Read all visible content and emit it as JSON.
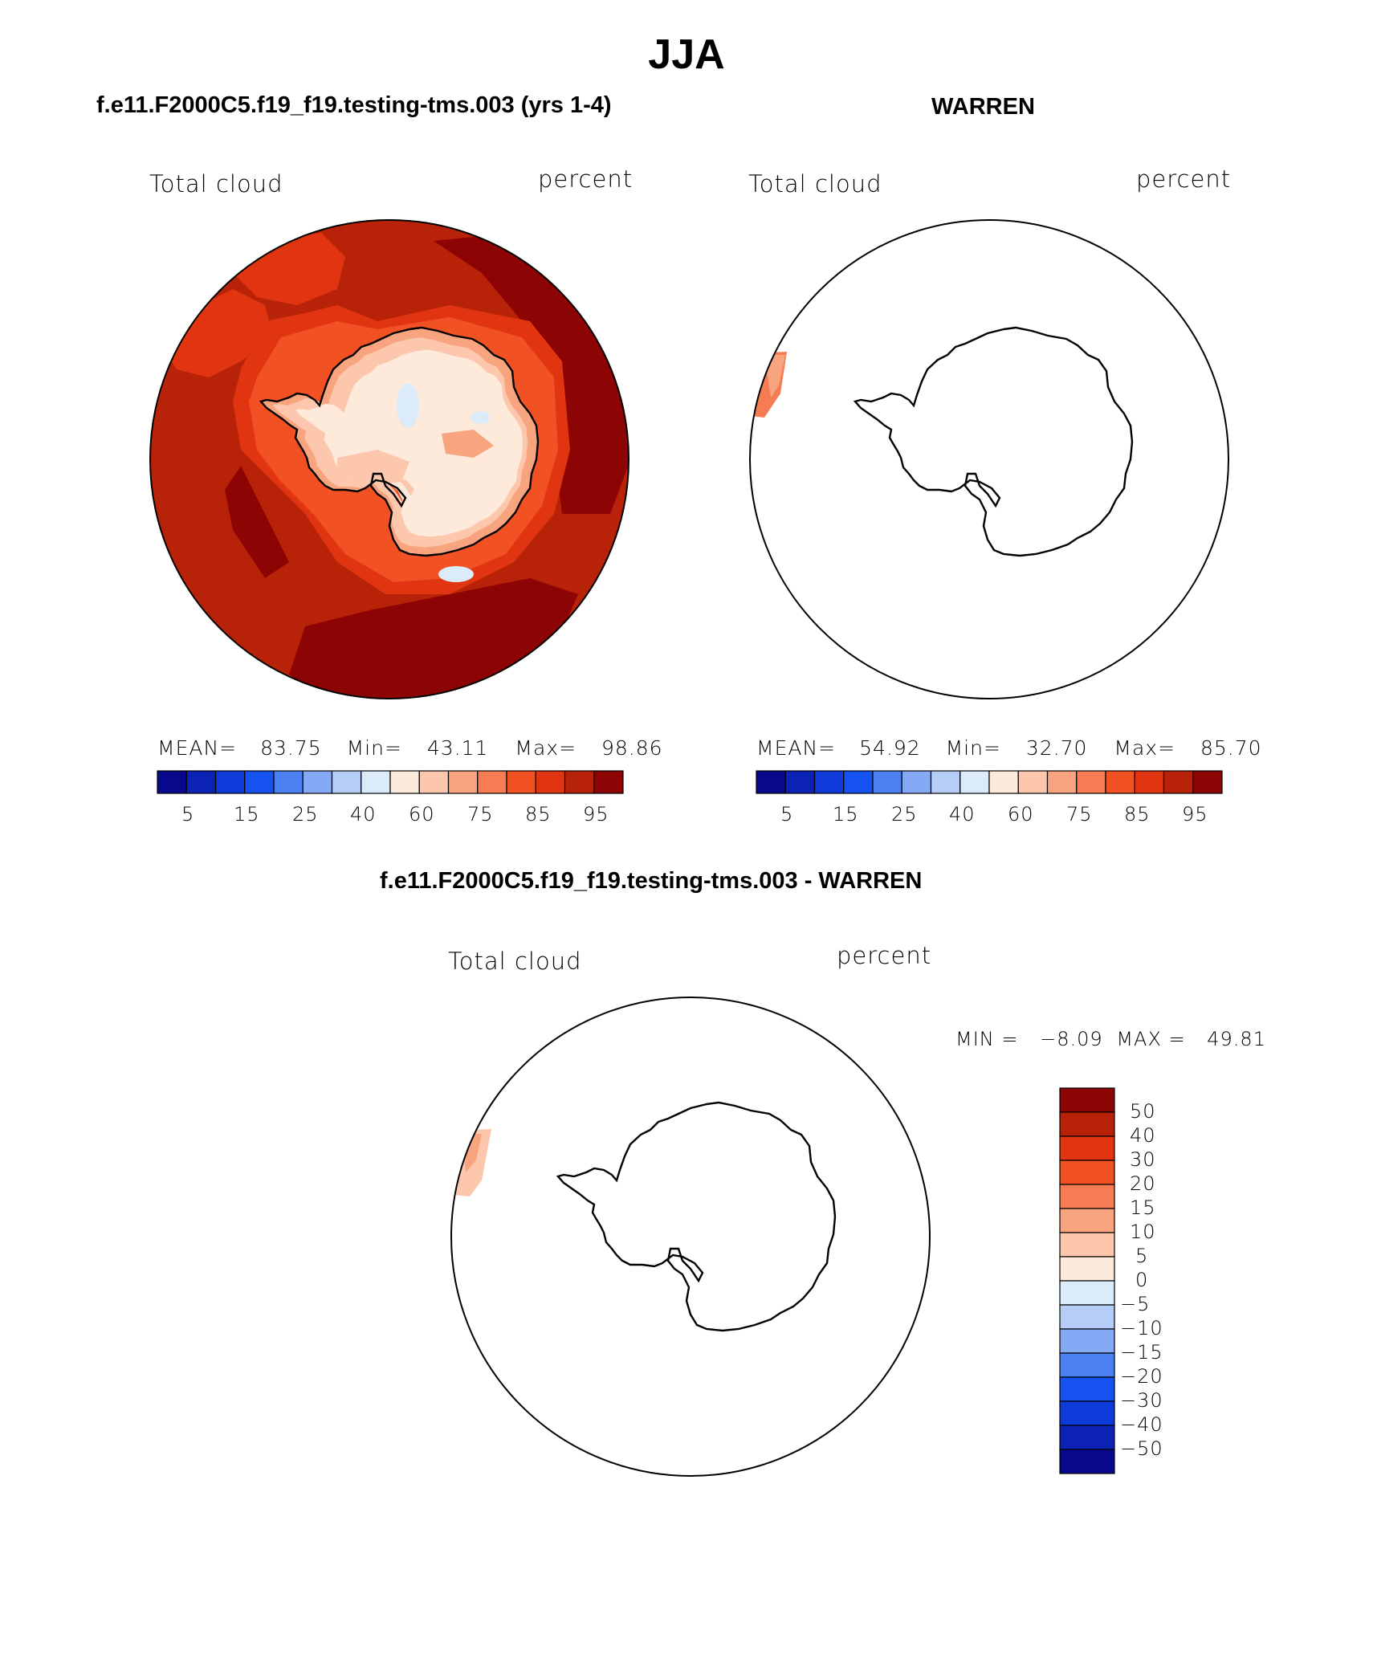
{
  "page": {
    "season_title": "JJA"
  },
  "panels": [
    {
      "title": "f.e11.F2000C5.f19_f19.testing-tms.003 (yrs 1-4)",
      "variable": "Total cloud",
      "units": "percent",
      "stats": {
        "mean_label": "MEAN=",
        "mean": "83.75",
        "min_label": "Min=",
        "min": "43.11",
        "max_label": "Max=",
        "max": "98.86"
      }
    },
    {
      "title": "WARREN",
      "variable": "Total cloud",
      "units": "percent",
      "stats": {
        "mean_label": "MEAN=",
        "mean": "54.92",
        "min_label": "Min=",
        "min": "32.70",
        "max_label": "Max=",
        "max": "85.70"
      }
    },
    {
      "title": "f.e11.F2000C5.f19_f19.testing-tms.003 - WARREN",
      "variable": "Total cloud",
      "units": "percent",
      "stats": {
        "min_label": "MIN =",
        "min": "−8.09",
        "max_label": "MAX =",
        "max": "49.81"
      }
    }
  ],
  "horizontal_colorbar": {
    "labels": [
      "5",
      "15",
      "25",
      "40",
      "60",
      "75",
      "85",
      "95"
    ],
    "colors": [
      "#08088c",
      "#0b22b4",
      "#0d3ad8",
      "#1652f0",
      "#4a80f2",
      "#86a9f5",
      "#b5cdf7",
      "#dcebfa",
      "#feeadb",
      "#fcc7ad",
      "#f8a47f",
      "#f57c53",
      "#f25124",
      "#e03510",
      "#b82208",
      "#8c0404"
    ]
  },
  "vertical_colorbar": {
    "labels": [
      "50",
      "40",
      "30",
      "20",
      "15",
      "10",
      "5",
      "0",
      "−5",
      "−10",
      "−15",
      "−20",
      "−30",
      "−40",
      "−50"
    ],
    "colors": [
      "#8c0404",
      "#b82208",
      "#e03510",
      "#f25124",
      "#f57c53",
      "#f8a47f",
      "#fcc7ad",
      "#feeadb",
      "#dcebfa",
      "#b5cdf7",
      "#86a9f5",
      "#4a80f2",
      "#1652f0",
      "#0d3ad8",
      "#0b22b4",
      "#08088c"
    ]
  },
  "map_colors": {
    "deep": "#8c0404",
    "dark": "#b82208",
    "mid": "#e03510",
    "orange": "#f25124",
    "light_orange": "#f57c53",
    "salmon": "#f8a47f",
    "peach": "#fcc7ad",
    "cream": "#feeadb",
    "ice": "#dcebfa",
    "outline": "#000000"
  }
}
